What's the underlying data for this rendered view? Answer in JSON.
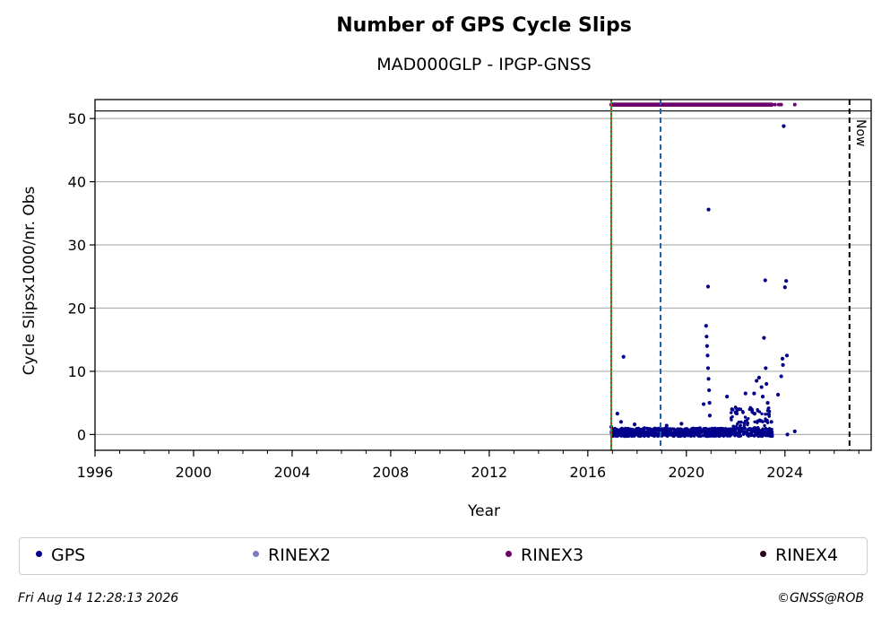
{
  "chart_data": {
    "type": "scatter",
    "title": "Number of GPS Cycle Slips",
    "subtitle": "MAD000GLP - IPGP-GNSS",
    "xlabel": "Year",
    "ylabel": "Cycle Slipsx1000/nr. Obs",
    "xlim": [
      1996,
      2027.5
    ],
    "ylim": [
      -2.5,
      53
    ],
    "x_ticks": [
      1996,
      2000,
      2004,
      2008,
      2012,
      2016,
      2020,
      2024
    ],
    "y_ticks": [
      0,
      10,
      20,
      30,
      40,
      50
    ],
    "grid": "horizontal",
    "legend_position": "bottom",
    "now_marker": {
      "label": "Now",
      "x": 2026.62
    },
    "vertical_lines": [
      {
        "x": 2016.95,
        "color": "#2ca02c",
        "style": "solid"
      },
      {
        "x": 2016.95,
        "color": "#d62728",
        "style": "dotted"
      },
      {
        "x": 2018.95,
        "color": "#1f5fa8",
        "style": "dashed"
      }
    ],
    "reference_line_y": 51.2,
    "rinex3_availability": {
      "y": 52.2,
      "start": 2016.95,
      "end": 2023.5,
      "extra_points": [
        2023.6,
        2023.75,
        2023.85,
        2024.4
      ]
    },
    "series": [
      {
        "name": "GPS",
        "color": "#00008b",
        "points": [
          [
            2016.95,
            1.2
          ],
          [
            2017.05,
            0.5
          ],
          [
            2017.2,
            3.3
          ],
          [
            2017.35,
            2.0
          ],
          [
            2017.45,
            12.3
          ],
          [
            2017.9,
            1.6
          ],
          [
            2018.3,
            1.0
          ],
          [
            2019.2,
            1.4
          ],
          [
            2019.8,
            1.7
          ],
          [
            2020.3,
            0.8
          ],
          [
            2020.55,
            1.0
          ],
          [
            2020.7,
            4.8
          ],
          [
            2020.8,
            17.2
          ],
          [
            2020.82,
            15.5
          ],
          [
            2020.84,
            14.0
          ],
          [
            2020.86,
            12.5
          ],
          [
            2020.88,
            10.5
          ],
          [
            2020.9,
            8.8
          ],
          [
            2020.92,
            7.0
          ],
          [
            2020.94,
            5.0
          ],
          [
            2020.9,
            35.6
          ],
          [
            2020.88,
            23.4
          ],
          [
            2020.95,
            3.0
          ],
          [
            2021.65,
            6.0
          ],
          [
            2021.85,
            4.0
          ],
          [
            2022.0,
            3.5
          ],
          [
            2022.15,
            4.0
          ],
          [
            2022.4,
            6.5
          ],
          [
            2022.65,
            4.0
          ],
          [
            2022.75,
            6.5
          ],
          [
            2022.85,
            8.5
          ],
          [
            2022.95,
            9.0
          ],
          [
            2023.05,
            7.5
          ],
          [
            2023.1,
            6.0
          ],
          [
            2023.15,
            15.3
          ],
          [
            2023.2,
            24.4
          ],
          [
            2023.22,
            10.5
          ],
          [
            2023.25,
            8.0
          ],
          [
            2023.3,
            5.0
          ],
          [
            2023.45,
            2.0
          ],
          [
            2023.72,
            6.3
          ],
          [
            2023.85,
            9.2
          ],
          [
            2023.9,
            12.0
          ],
          [
            2023.92,
            11.0
          ],
          [
            2023.95,
            48.8
          ],
          [
            2024.0,
            23.3
          ],
          [
            2024.05,
            24.3
          ],
          [
            2024.08,
            12.5
          ],
          [
            2024.1,
            0.0
          ],
          [
            2024.4,
            0.5
          ]
        ],
        "dense_band": {
          "x": [
            2016.95,
            2023.5
          ],
          "y": [
            -0.3,
            1.0
          ]
        }
      },
      {
        "name": "RINEX2",
        "color": "#7b7bc0"
      },
      {
        "name": "RINEX3",
        "color": "#6b006b"
      },
      {
        "name": "RINEX4",
        "color": "#2a001a"
      }
    ]
  },
  "footer": {
    "timestamp": "Fri Aug 14 12:28:13 2026",
    "credit": "©GNSS@ROB"
  }
}
